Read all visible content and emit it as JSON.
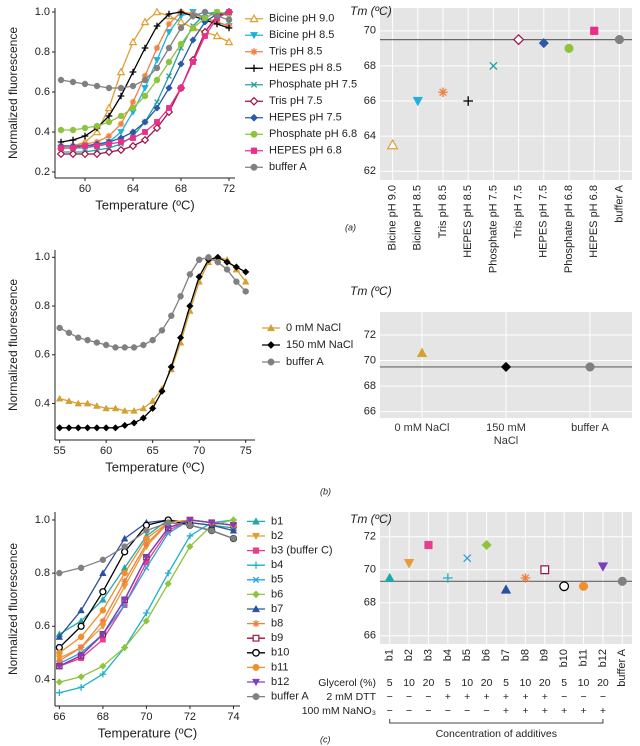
{
  "chart_data": [
    {
      "type": "line",
      "xlabel": "Temperature (ºC)",
      "ylabel": "Normalized fluorescence",
      "xlim": [
        57.5,
        72.5
      ],
      "xticks": [
        60,
        64,
        68,
        72
      ],
      "ylim": [
        0.17,
        1.02
      ],
      "yticks": [
        0.2,
        0.4,
        0.6,
        0.8,
        {
          "value": 1,
          "label": "1.0"
        }
      ],
      "legend": "right",
      "x": [
        58,
        59,
        60,
        61,
        62,
        63,
        64,
        65,
        66,
        67,
        68,
        69,
        70,
        71,
        72
      ],
      "series": [
        {
          "name": "Bicine pH 9.0",
          "color": "#e0a030",
          "marker": "triangle-open",
          "values": [
            0.33,
            0.33,
            0.35,
            0.4,
            0.52,
            0.7,
            0.85,
            0.95,
            1.0,
            0.98,
            0.95,
            0.92,
            0.9,
            0.88,
            0.85
          ]
        },
        {
          "name": "Bicine pH 8.5",
          "color": "#20b0e0",
          "marker": "triangle-down",
          "values": [
            0.32,
            0.32,
            0.32,
            0.33,
            0.35,
            0.4,
            0.5,
            0.62,
            0.76,
            0.9,
            0.98,
            1.0,
            0.97,
            0.95,
            0.93
          ]
        },
        {
          "name": "Tris pH 8.5",
          "color": "#f08040",
          "marker": "asterisk",
          "values": [
            0.33,
            0.33,
            0.34,
            0.35,
            0.38,
            0.44,
            0.55,
            0.68,
            0.82,
            0.94,
            1.0,
            0.99,
            0.97,
            0.95,
            0.93
          ]
        },
        {
          "name": "HEPES pH 8.5",
          "color": "#000000",
          "marker": "plus",
          "values": [
            0.35,
            0.36,
            0.38,
            0.42,
            0.48,
            0.58,
            0.7,
            0.82,
            0.93,
            0.99,
            1.0,
            0.98,
            0.96,
            0.94,
            0.92
          ]
        },
        {
          "name": "Phosphate pH 7.5",
          "color": "#20a0a0",
          "marker": "x",
          "values": [
            0.3,
            0.3,
            0.3,
            0.31,
            0.32,
            0.34,
            0.38,
            0.45,
            0.55,
            0.68,
            0.82,
            0.93,
            0.99,
            1.0,
            0.98
          ]
        },
        {
          "name": "Tris pH 7.5",
          "color": "#a01040",
          "marker": "diamond-open",
          "values": [
            0.29,
            0.29,
            0.29,
            0.29,
            0.3,
            0.31,
            0.33,
            0.36,
            0.42,
            0.5,
            0.62,
            0.76,
            0.9,
            0.98,
            1.0
          ]
        },
        {
          "name": "HEPES pH 7.5",
          "color": "#2c58a8",
          "marker": "diamond",
          "values": [
            0.33,
            0.33,
            0.33,
            0.34,
            0.35,
            0.37,
            0.4,
            0.45,
            0.52,
            0.62,
            0.74,
            0.86,
            0.95,
            0.99,
            1.0
          ]
        },
        {
          "name": "Phosphate pH 6.8",
          "color": "#8cc43c",
          "marker": "circle",
          "values": [
            0.41,
            0.41,
            0.42,
            0.43,
            0.45,
            0.48,
            0.52,
            0.58,
            0.66,
            0.75,
            0.84,
            0.92,
            0.97,
            1.0,
            0.99
          ]
        },
        {
          "name": "HEPES pH 6.8",
          "color": "#e8308a",
          "marker": "square",
          "values": [
            0.32,
            0.32,
            0.33,
            0.33,
            0.34,
            0.35,
            0.37,
            0.4,
            0.45,
            0.52,
            0.62,
            0.75,
            0.88,
            0.97,
            1.0
          ]
        },
        {
          "name": "buffer A",
          "color": "#808080",
          "marker": "circle",
          "values": [
            0.66,
            0.65,
            0.64,
            0.63,
            0.62,
            0.62,
            0.63,
            0.66,
            0.72,
            0.82,
            0.92,
            0.98,
            1.0,
            0.98,
            0.96
          ]
        }
      ]
    },
    {
      "type": "scatter",
      "title": "Tm (ºC)",
      "caption": "(a)",
      "grid": true,
      "ylim": [
        61.5,
        71.3
      ],
      "yticks": [
        62,
        64,
        66,
        68,
        70
      ],
      "hline": 69.5,
      "categories": [
        "Bicine pH 9.0",
        "Bicine pH 8.5",
        "Tris pH 8.5",
        "HEPES pH 8.5",
        "Phosphate pH 7.5",
        "Tris pH 7.5",
        "HEPES pH 7.5",
        "Phosphate pH 6.8",
        "HEPES pH 6.8",
        "buffer A"
      ],
      "values": [
        63.5,
        66.0,
        66.5,
        66.0,
        68.0,
        69.5,
        69.3,
        69.0,
        70.0,
        69.5
      ],
      "colors": [
        "#e0a030",
        "#20b0e0",
        "#f08040",
        "#000000",
        "#20a0a0",
        "#a01040",
        "#2c58a8",
        "#8cc43c",
        "#e8308a",
        "#808080"
      ],
      "markers": [
        "triangle-open",
        "triangle-down",
        "asterisk",
        "plus",
        "x",
        "diamond-open",
        "diamond",
        "circle",
        "square",
        "circle"
      ]
    },
    {
      "type": "line",
      "xlabel": "Temperature (ºC)",
      "ylabel": "Normalized fluorescence",
      "xlim": [
        54.5,
        76
      ],
      "xticks": [
        55,
        60,
        65,
        70,
        75
      ],
      "ylim": [
        0.25,
        1.03
      ],
      "yticks": [
        0.4,
        0.6,
        0.8,
        {
          "value": 1,
          "label": "1.0"
        }
      ],
      "legend": "right",
      "x": [
        55,
        56,
        57,
        58,
        59,
        60,
        61,
        62,
        63,
        64,
        65,
        66,
        67,
        68,
        69,
        70,
        71,
        72,
        73,
        74,
        75
      ],
      "series": [
        {
          "name": "0 mM NaCl",
          "color": "#d4a030",
          "marker": "triangle",
          "values": [
            0.42,
            0.41,
            0.4,
            0.4,
            0.39,
            0.38,
            0.38,
            0.37,
            0.37,
            0.38,
            0.41,
            0.46,
            0.54,
            0.65,
            0.78,
            0.9,
            0.98,
            1.0,
            0.99,
            0.95,
            0.9
          ]
        },
        {
          "name": "150 mM NaCl",
          "color": "#000000",
          "marker": "diamond",
          "values": [
            0.3,
            0.3,
            0.3,
            0.3,
            0.3,
            0.3,
            0.3,
            0.31,
            0.32,
            0.34,
            0.38,
            0.45,
            0.55,
            0.67,
            0.8,
            0.92,
            0.99,
            1.0,
            0.98,
            0.96,
            0.94
          ]
        },
        {
          "name": "buffer A",
          "color": "#808080",
          "marker": "circle",
          "values": [
            0.71,
            0.69,
            0.67,
            0.66,
            0.65,
            0.64,
            0.63,
            0.63,
            0.63,
            0.64,
            0.66,
            0.7,
            0.76,
            0.84,
            0.93,
            0.99,
            1.0,
            0.98,
            0.95,
            0.9,
            0.86
          ]
        }
      ]
    },
    {
      "type": "scatter",
      "title": "Tm (ºC)",
      "caption": "(b)",
      "grid": true,
      "ylim": [
        65.5,
        73.8
      ],
      "yticks": [
        66,
        68,
        70,
        72
      ],
      "hline": 69.5,
      "categories": [
        "0 mM NaCl",
        "150 mM NaCl",
        "buffer A"
      ],
      "values": [
        70.6,
        69.5,
        69.5
      ],
      "colors": [
        "#d4a030",
        "#000000",
        "#808080"
      ],
      "markers": [
        "triangle",
        "diamond",
        "circle"
      ]
    },
    {
      "type": "line",
      "xlabel": "Temperature (ºC)",
      "ylabel": "Normalized fluorescence",
      "xlim": [
        65.8,
        74.3
      ],
      "xticks": [
        66,
        68,
        70,
        72,
        74
      ],
      "ylim": [
        0.3,
        1.03
      ],
      "yticks": [
        0.4,
        0.6,
        0.8,
        {
          "value": 1,
          "label": "1.0"
        }
      ],
      "legend": "right",
      "x": [
        66,
        67,
        68,
        69,
        70,
        71,
        72,
        73,
        74
      ],
      "series": [
        {
          "name": "b1",
          "color": "#20a8a8",
          "marker": "triangle",
          "values": [
            0.57,
            0.62,
            0.7,
            0.82,
            0.94,
            1.0,
            0.99,
            0.98,
            0.97
          ]
        },
        {
          "name": "b2",
          "color": "#e89c30",
          "marker": "triangle-down",
          "values": [
            0.48,
            0.52,
            0.6,
            0.75,
            0.9,
            0.99,
            1.0,
            0.99,
            0.98
          ]
        },
        {
          "name": "b3 (buffer C)",
          "color": "#e83c8c",
          "marker": "square",
          "values": [
            0.45,
            0.48,
            0.55,
            0.68,
            0.84,
            0.96,
            1.0,
            0.99,
            0.98
          ]
        },
        {
          "name": "b4",
          "color": "#20b0c8",
          "marker": "plus",
          "values": [
            0.35,
            0.37,
            0.42,
            0.52,
            0.65,
            0.8,
            0.94,
            0.99,
            1.0
          ]
        },
        {
          "name": "b5",
          "color": "#30a0e0",
          "marker": "x",
          "values": [
            0.46,
            0.5,
            0.57,
            0.68,
            0.82,
            0.95,
            1.0,
            0.99,
            0.98
          ]
        },
        {
          "name": "b6",
          "color": "#8cc43c",
          "marker": "diamond",
          "values": [
            0.39,
            0.41,
            0.45,
            0.52,
            0.62,
            0.76,
            0.9,
            0.98,
            1.0
          ]
        },
        {
          "name": "b7",
          "color": "#2c50a0",
          "marker": "triangle",
          "values": [
            0.56,
            0.66,
            0.8,
            0.93,
            0.99,
            1.0,
            0.99,
            0.98,
            0.96
          ]
        },
        {
          "name": "b8",
          "color": "#f08040",
          "marker": "asterisk",
          "values": [
            0.47,
            0.52,
            0.62,
            0.77,
            0.91,
            0.99,
            1.0,
            0.99,
            0.98
          ]
        },
        {
          "name": "b9",
          "color": "#a01040",
          "marker": "square-open",
          "values": [
            0.45,
            0.49,
            0.57,
            0.7,
            0.86,
            0.97,
            1.0,
            0.99,
            0.98
          ]
        },
        {
          "name": "b10",
          "color": "#000000",
          "marker": "circle-open",
          "values": [
            0.52,
            0.6,
            0.73,
            0.88,
            0.98,
            1.0,
            0.98,
            0.96,
            0.93
          ]
        },
        {
          "name": "b11",
          "color": "#f0902c",
          "marker": "circle",
          "values": [
            0.5,
            0.56,
            0.66,
            0.8,
            0.93,
            0.99,
            1.0,
            0.99,
            0.98
          ]
        },
        {
          "name": "b12",
          "color": "#7a40c0",
          "marker": "triangle-down",
          "values": [
            0.45,
            0.49,
            0.57,
            0.7,
            0.86,
            0.97,
            1.0,
            0.99,
            0.98
          ]
        },
        {
          "name": "buffer A",
          "color": "#808080",
          "marker": "circle",
          "values": [
            0.8,
            0.82,
            0.85,
            0.9,
            0.96,
            0.99,
            0.98,
            0.96,
            0.93
          ]
        }
      ]
    },
    {
      "type": "scatter",
      "title": "Tm (ºC)",
      "caption": "(c)",
      "grid": true,
      "ylim": [
        65.5,
        73.5
      ],
      "yticks": [
        66,
        68,
        70,
        72
      ],
      "hline": 69.3,
      "categories": [
        "b1",
        "b2",
        "b3",
        "b4",
        "b5",
        "b6",
        "b7",
        "b8",
        "b9",
        "b10",
        "b11",
        "b12",
        "buffer A"
      ],
      "values": [
        69.5,
        70.4,
        71.5,
        69.5,
        70.7,
        71.5,
        68.8,
        69.5,
        70.0,
        69.0,
        69.0,
        70.2,
        69.3
      ],
      "colors": [
        "#20a8a8",
        "#e89c30",
        "#e83c8c",
        "#20b0c8",
        "#30a0e0",
        "#8cc43c",
        "#2c50a0",
        "#f08040",
        "#a01040",
        "#000000",
        "#f0902c",
        "#7a40c0",
        "#808080"
      ],
      "markers": [
        "triangle",
        "triangle-down",
        "square",
        "plus",
        "x",
        "diamond",
        "triangle",
        "asterisk",
        "square-open",
        "circle-open",
        "circle",
        "triangle-down",
        "circle"
      ],
      "additives": {
        "rows": [
          {
            "label": "Glycerol (%)",
            "values": [
              5,
              10,
              20,
              5,
              10,
              20,
              5,
              10,
              20,
              5,
              10,
              20
            ]
          },
          {
            "label": "2 mM DTT",
            "values": [
              "−",
              "−",
              "−",
              "+",
              "+",
              "+",
              "+",
              "+",
              "+",
              "−",
              "−",
              "−"
            ]
          },
          {
            "label": "100 mM NaNO₃",
            "values": [
              "−",
              "−",
              "−",
              "−",
              "−",
              "−",
              "+",
              "+",
              "+",
              "+",
              "+",
              "+"
            ]
          }
        ],
        "caption": "Concentration of additives"
      }
    }
  ]
}
